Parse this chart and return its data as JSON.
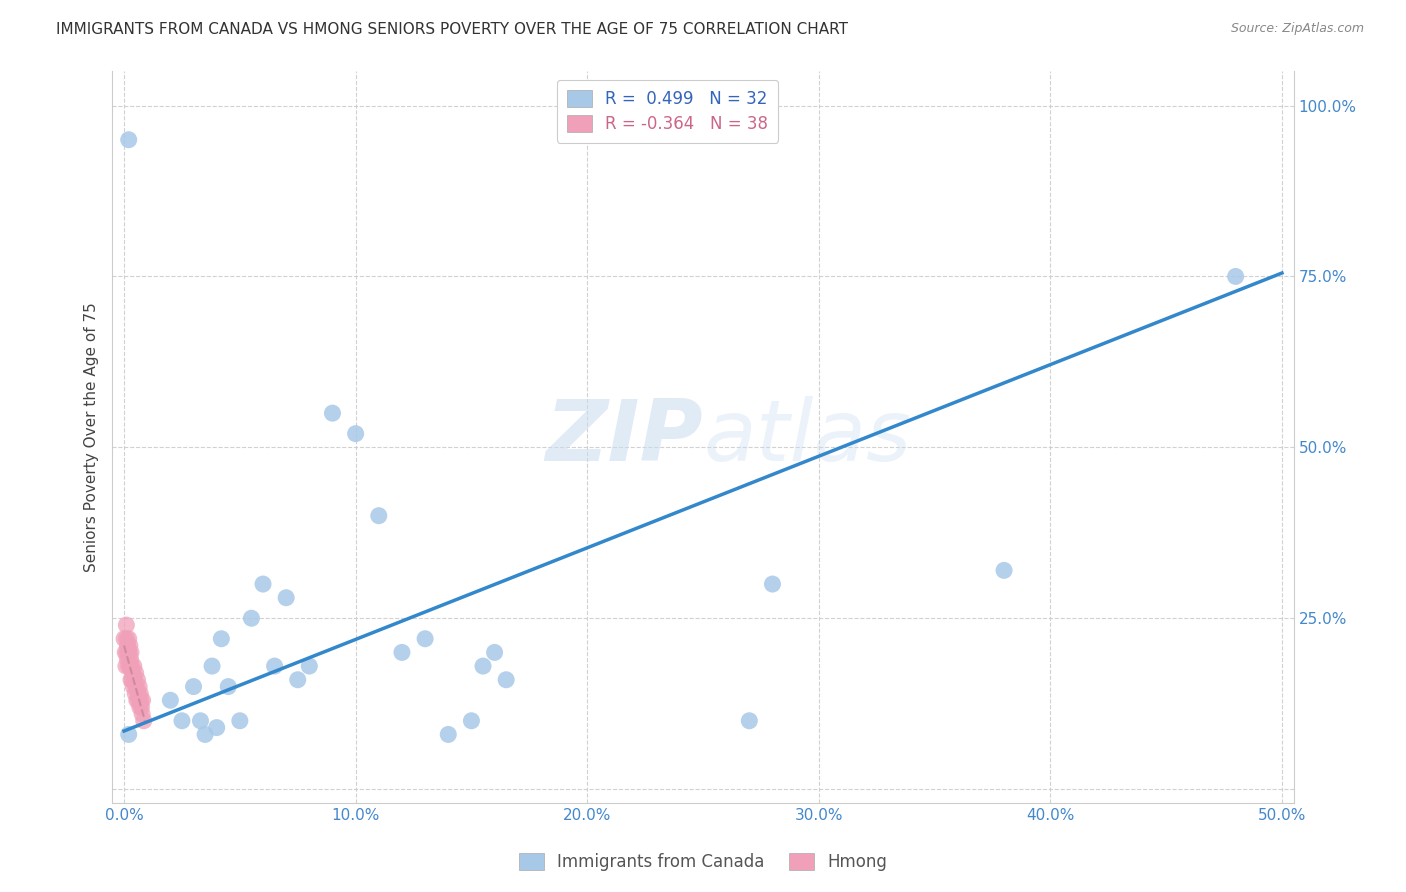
{
  "title": "IMMIGRANTS FROM CANADA VS HMONG SENIORS POVERTY OVER THE AGE OF 75 CORRELATION CHART",
  "source": "Source: ZipAtlas.com",
  "ylabel": "Seniors Poverty Over the Age of 75",
  "legend_label1": "Immigrants from Canada",
  "legend_label2": "Hmong",
  "R1": 0.499,
  "N1": 32,
  "R2": -0.364,
  "N2": 38,
  "xlim": [
    -0.005,
    0.505
  ],
  "ylim": [
    -0.02,
    1.05
  ],
  "xticks": [
    0.0,
    0.1,
    0.2,
    0.3,
    0.4,
    0.5
  ],
  "xtick_labels": [
    "0.0%",
    "10.0%",
    "20.0%",
    "30.0%",
    "40.0%",
    "50.0%"
  ],
  "yticks": [
    0.0,
    0.25,
    0.5,
    0.75,
    1.0
  ],
  "ytick_labels": [
    "",
    "25.0%",
    "50.0%",
    "75.0%",
    "100.0%"
  ],
  "blue_color": "#A8C8E8",
  "blue_line_color": "#3388CC",
  "pink_color": "#F0A0B8",
  "pink_line_color": "#CC8899",
  "watermark_color": "#C8DCF0",
  "canada_x": [
    0.002,
    0.02,
    0.025,
    0.03,
    0.033,
    0.035,
    0.038,
    0.04,
    0.042,
    0.045,
    0.05,
    0.055,
    0.06,
    0.065,
    0.07,
    0.075,
    0.08,
    0.09,
    0.1,
    0.11,
    0.12,
    0.13,
    0.14,
    0.15,
    0.155,
    0.16,
    0.165,
    0.27,
    0.28,
    0.38,
    0.48,
    0.002
  ],
  "canada_y": [
    0.95,
    0.13,
    0.1,
    0.15,
    0.1,
    0.08,
    0.18,
    0.09,
    0.22,
    0.15,
    0.1,
    0.25,
    0.3,
    0.18,
    0.28,
    0.16,
    0.18,
    0.55,
    0.52,
    0.4,
    0.2,
    0.22,
    0.08,
    0.1,
    0.18,
    0.2,
    0.16,
    0.1,
    0.3,
    0.32,
    0.75,
    0.08
  ],
  "hmong_x": [
    0.0,
    0.0005,
    0.0008,
    0.001,
    0.001,
    0.0012,
    0.0015,
    0.0015,
    0.0018,
    0.002,
    0.002,
    0.0022,
    0.0025,
    0.0025,
    0.0028,
    0.003,
    0.003,
    0.0032,
    0.0035,
    0.0038,
    0.004,
    0.0042,
    0.0045,
    0.0048,
    0.005,
    0.0052,
    0.0055,
    0.0058,
    0.006,
    0.0062,
    0.0065,
    0.0068,
    0.007,
    0.0072,
    0.0075,
    0.0078,
    0.008,
    0.0085
  ],
  "hmong_y": [
    0.22,
    0.2,
    0.18,
    0.24,
    0.22,
    0.2,
    0.21,
    0.19,
    0.2,
    0.18,
    0.22,
    0.2,
    0.18,
    0.21,
    0.19,
    0.16,
    0.2,
    0.18,
    0.16,
    0.17,
    0.15,
    0.18,
    0.16,
    0.14,
    0.17,
    0.15,
    0.13,
    0.16,
    0.14,
    0.13,
    0.15,
    0.12,
    0.14,
    0.13,
    0.12,
    0.11,
    0.13,
    0.1
  ],
  "line1_x0": 0.0,
  "line1_y0": 0.085,
  "line1_x1": 0.5,
  "line1_y1": 0.755,
  "line2_x0": 0.0,
  "line2_y0": 0.21,
  "line2_x1": 0.009,
  "line2_y1": 0.1
}
